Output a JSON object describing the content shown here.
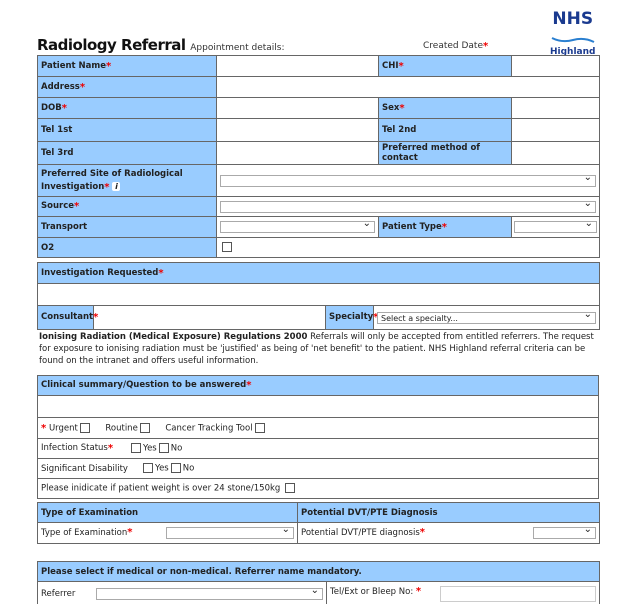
{
  "logo": {
    "name": "NHS",
    "region": "Highland"
  },
  "header": {
    "title": "Radiology Referral",
    "appointment": "Appointment details:",
    "created_date": "Created Date"
  },
  "patient": {
    "name": "Patient Name",
    "chi": "CHI",
    "address": "Address",
    "dob": "DOB",
    "sex": "Sex",
    "tel1": "Tel 1st",
    "tel2": "Tel 2nd",
    "tel3": "Tel 3rd",
    "pref_contact": "Preferred method of contact",
    "pref_site": "Preferred Site of Radiological Investigation",
    "source": "Source",
    "transport": "Transport",
    "patient_type": "Patient Type",
    "o2": "O2"
  },
  "investigation": {
    "header": "Investigation Requested",
    "consultant": "Consultant",
    "specialty": "Specialty",
    "specialty_value": "Select a specialty..."
  },
  "note": {
    "bold": "Ionising Radiation (Medical Exposure) Regulations 2000",
    "text": " Referrals will only be accepted from entitled referrers. The request for exposure to ionising radiation must be 'justified' as being of 'net benefit' to the patient. NHS Highland referral criteria can be found on the intranet and offers useful information."
  },
  "clinical": {
    "header": "Clinical summary/Question to be answered",
    "urgent": "Urgent",
    "routine": "Routine",
    "cancer": "Cancer Tracking Tool",
    "infection": "Infection Status",
    "disability": "Significant Disability",
    "yes": "Yes",
    "no": "No",
    "weight": "Please inidicate if patient weight is over 24 stone/150kg"
  },
  "exam": {
    "header": "Type of Examination",
    "label": "Type of Examination",
    "dvt_header": "Potential DVT/PTE Diagnosis",
    "dvt_label": "Potential DVT/PTE diagnosis"
  },
  "referrer": {
    "header": "Please select if medical or non-medical. Referrer name mandatory.",
    "label": "Referrer",
    "tel": "Tel/Ext or Bleep No:"
  },
  "colors": {
    "label_bg": "#99ccff",
    "required": "#ee0000",
    "brand": "#1a3a8f"
  }
}
